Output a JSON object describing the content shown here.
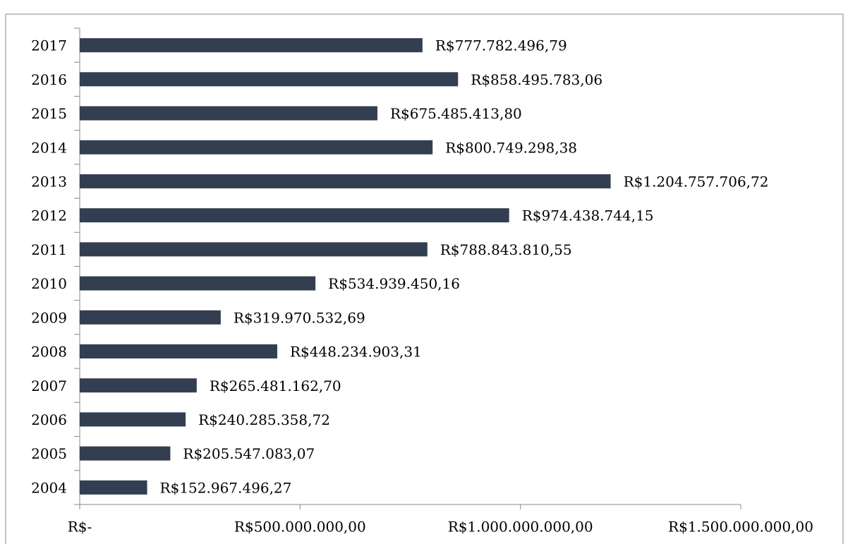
{
  "chart_data": {
    "type": "hbar",
    "categories": [
      "2017",
      "2016",
      "2015",
      "2014",
      "2013",
      "2012",
      "2011",
      "2010",
      "2009",
      "2008",
      "2007",
      "2006",
      "2005",
      "2004"
    ],
    "values": [
      777782496.79,
      858495783.06,
      675485413.8,
      800749298.38,
      1204757706.72,
      974438744.15,
      788843810.55,
      534939450.16,
      319970532.69,
      448234903.31,
      265481162.7,
      240285358.72,
      205547083.07,
      152967496.27
    ],
    "value_labels": [
      "R$777.782.496,79",
      "R$858.495.783,06",
      "R$675.485.413,80",
      "R$800.749.298,38",
      "R$1.204.757.706,72",
      "R$974.438.744,15",
      "R$788.843.810,55",
      "R$534.939.450,16",
      "R$319.970.532,69",
      "R$448.234.903,31",
      "R$265.481.162,70",
      "R$240.285.358,72",
      "R$205.547.083,07",
      "R$152.967.496,27"
    ],
    "color": "#333f50",
    "xlim": [
      0,
      1500000000
    ],
    "xticks": [
      {
        "value": 0,
        "label": "R$-"
      },
      {
        "value": 500000000,
        "label": "R$500.000.000,00"
      },
      {
        "value": 1000000000,
        "label": "R$1.000.000.000,00"
      },
      {
        "value": 1500000000,
        "label": "R$1.500.000.000,00"
      }
    ]
  }
}
